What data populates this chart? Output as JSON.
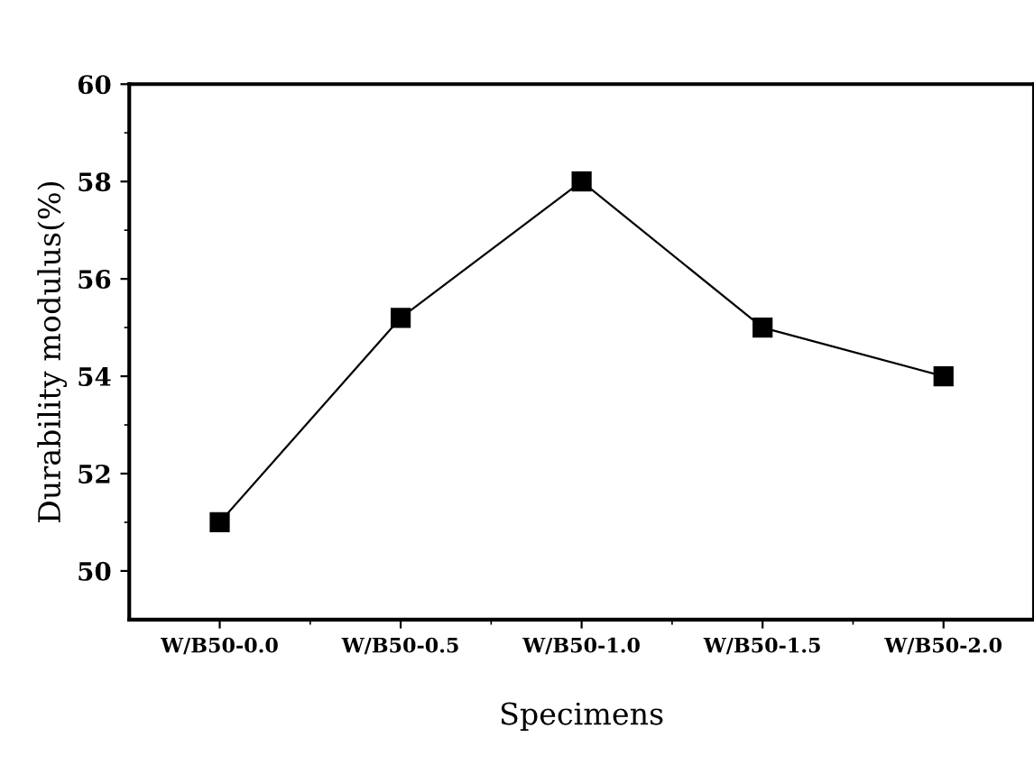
{
  "chart_data": {
    "type": "line",
    "xlabel": "Specimens",
    "ylabel": "Durability modulus(%)",
    "categories": [
      "W/B50-0.0",
      "W/B50-0.5",
      "W/B50-1.0",
      "W/B50-1.5",
      "W/B50-2.0"
    ],
    "series": [
      {
        "color": "#000000",
        "values": [
          51,
          55.2,
          58,
          55,
          54
        ]
      }
    ],
    "ylim": [
      49,
      60
    ],
    "yticks": [
      50,
      52,
      54,
      56,
      58,
      60
    ],
    "marker": "square",
    "line_style": "solid",
    "grid": false,
    "legend": false
  }
}
